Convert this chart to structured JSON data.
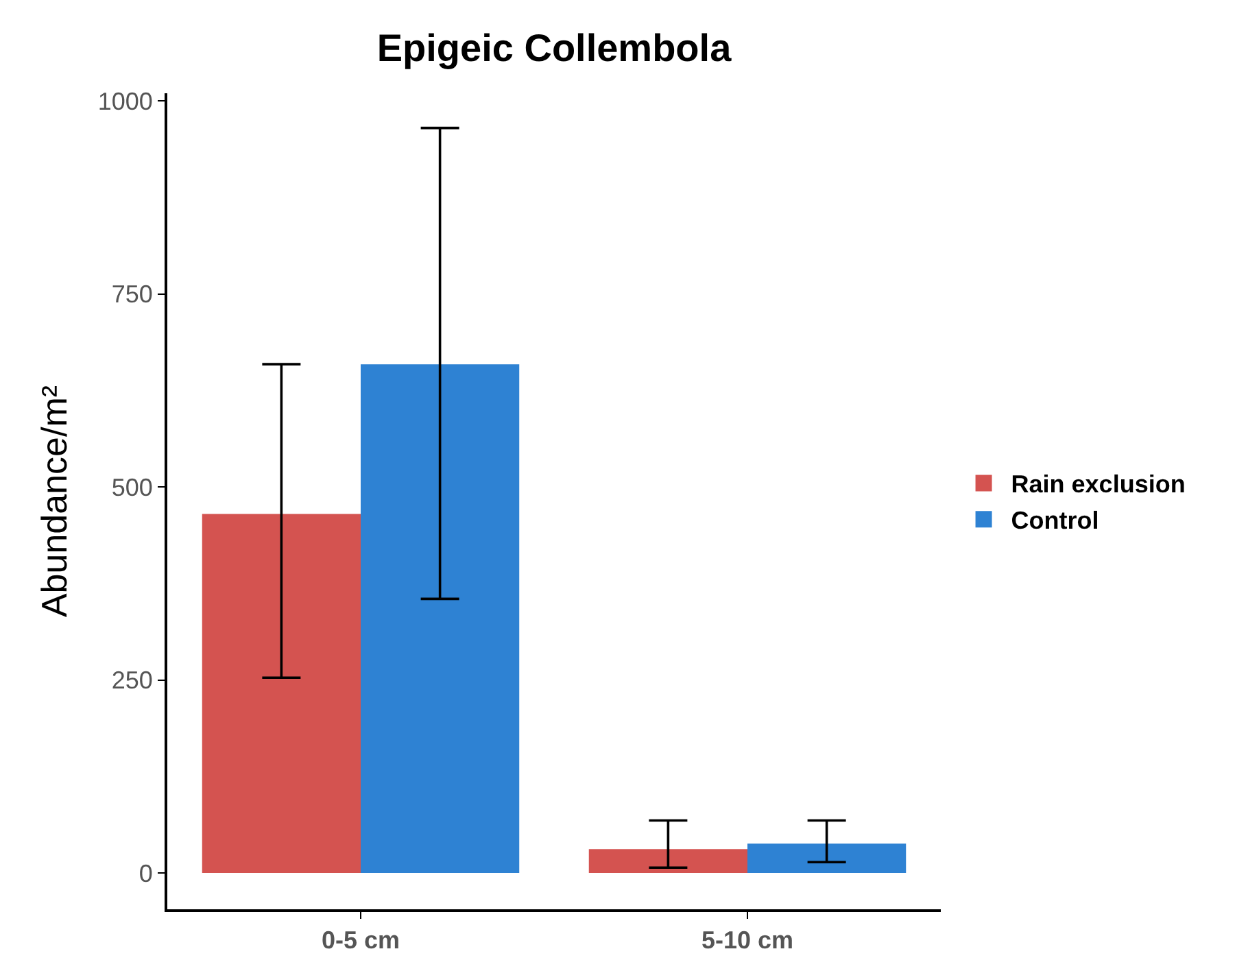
{
  "chart_data": {
    "type": "bar",
    "title": "Epigeic Collembola",
    "ylabel": "Abundance/m²",
    "categories": [
      "0-5 cm",
      "5-10 cm"
    ],
    "series": [
      {
        "name": "Rain exclusion",
        "color": "#d45350",
        "values": [
          465,
          31
        ],
        "errors": [
          [
            253,
            659
          ],
          [
            7,
            68
          ]
        ]
      },
      {
        "name": "Control",
        "color": "#2e82d3",
        "values": [
          659,
          38
        ],
        "errors": [
          [
            355,
            965
          ],
          [
            14,
            68
          ]
        ]
      }
    ],
    "ylim": [
      -47,
      1010
    ],
    "yticks": [
      0,
      250,
      500,
      750,
      1000
    ],
    "legend": "right"
  }
}
